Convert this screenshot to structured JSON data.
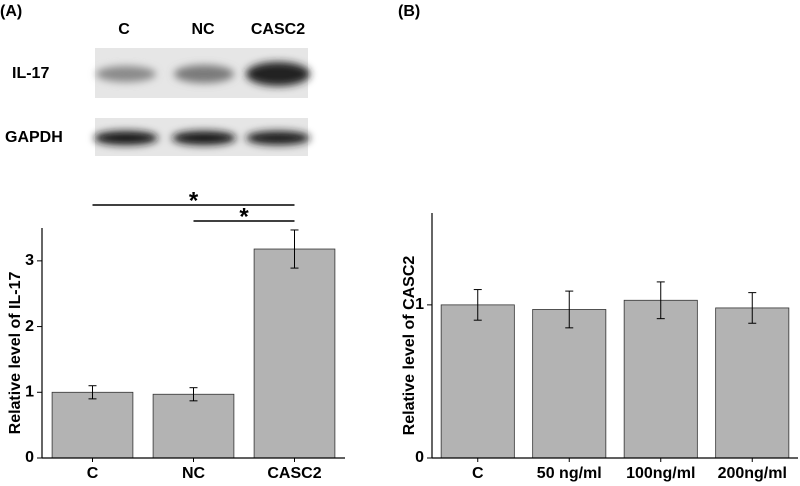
{
  "panel_labels": [
    "(A)",
    "(B)"
  ],
  "blot": {
    "lanes": [
      "C",
      "NC",
      "CASC2"
    ],
    "rows": [
      "IL-17",
      "GAPDH"
    ]
  },
  "chart_data": [
    {
      "type": "bar",
      "ylabel": "Relative level of IL-17",
      "categories": [
        "C",
        "NC",
        "CASC2"
      ],
      "values": [
        1.0,
        0.97,
        3.18
      ],
      "errors": [
        0.1,
        0.1,
        0.29
      ],
      "color": "#b3b3b3",
      "ylim": [
        0,
        3.5
      ],
      "yticks": [
        0,
        1,
        2,
        3
      ],
      "annotations": [
        {
          "text": "*",
          "from": "C",
          "to": "CASC2"
        },
        {
          "text": "*",
          "from": "NC",
          "to": "CASC2"
        }
      ]
    },
    {
      "type": "bar",
      "ylabel": "Relative level of CASC2",
      "categories": [
        "C",
        "50 ng/ml",
        "100ng/ml",
        "200ng/ml"
      ],
      "values": [
        1.0,
        0.97,
        1.03,
        0.98
      ],
      "errors": [
        0.1,
        0.12,
        0.12,
        0.1
      ],
      "color": "#b3b3b3",
      "ylim": [
        0,
        1.6
      ],
      "yticks": [
        0,
        1
      ]
    }
  ]
}
